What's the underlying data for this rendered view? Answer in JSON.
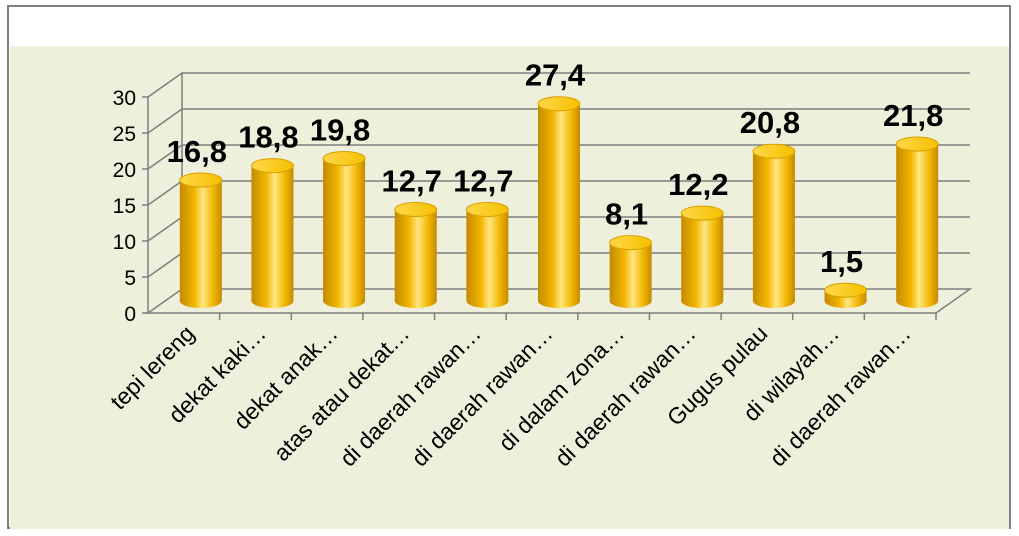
{
  "chart_data": {
    "type": "bar",
    "categories": [
      "tepi lereng",
      "dekat kaki…",
      "dekat anak…",
      "atas atau dekat…",
      "di daerah rawan…",
      "di daerah rawan…",
      "di dalam zona…",
      "di daerah rawan…",
      "Gugus pulau",
      "di wilayah…",
      "di daerah rawan…"
    ],
    "values": [
      16.8,
      18.8,
      19.8,
      12.7,
      12.7,
      27.4,
      8.1,
      12.2,
      20.8,
      1.5,
      21.8
    ],
    "value_labels": [
      "16,8",
      "18,8",
      "19,8",
      "12,7",
      "12,7",
      "27,4",
      "8,1",
      "12,2",
      "20,8",
      "1,5",
      "21,8"
    ],
    "yticks": [
      "0",
      "5",
      "10",
      "15",
      "20",
      "25",
      "30"
    ],
    "ylim": [
      0,
      30
    ],
    "title": "",
    "xlabel": "",
    "ylabel": "",
    "grid": true,
    "style": "3d-cylinder",
    "colors": {
      "bar": "#f2b600",
      "bar_highlight": "#ffe680",
      "bar_shadow": "#c48a00",
      "plot_background": "#eef0dc",
      "gridline": "#7f7f7f",
      "frame": "#7f7f7f"
    }
  }
}
